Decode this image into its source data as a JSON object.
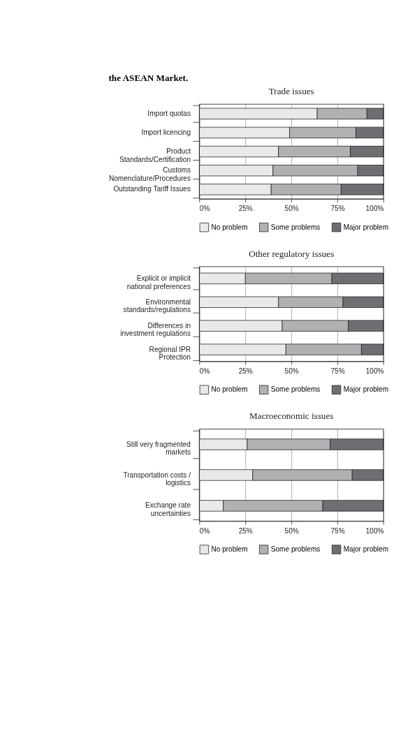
{
  "chart_data": [
    {
      "type": "bar",
      "orientation": "horizontal",
      "stacked": true,
      "title": "Trade issues",
      "annotations": [
        "the ASEAN Market."
      ],
      "categories": [
        "Import quotas",
        "Import licencing",
        "Product\nStandards/Certification",
        "Customs\nNomenclature/Procedures",
        "Outstanding Tariff Issues"
      ],
      "series": [
        {
          "name": "No problem",
          "color": "#e8e9eb",
          "values": [
            64,
            49,
            43,
            40,
            39
          ]
        },
        {
          "name": "Some problems",
          "color": "#b0b1b3",
          "values": [
            27,
            36,
            39,
            46,
            38
          ]
        },
        {
          "name": "Major problem",
          "color": "#6e6f72",
          "values": [
            9,
            15,
            18,
            14,
            23
          ]
        }
      ],
      "xlim": [
        0,
        100
      ],
      "xticks": [
        {
          "value": 0,
          "label": "0%"
        },
        {
          "value": 25,
          "label": "25%"
        },
        {
          "value": 50,
          "label": "50%"
        },
        {
          "value": 75,
          "label": "75%"
        },
        {
          "value": 100,
          "label": "100%"
        }
      ],
      "grid": "x",
      "legend": "bottom"
    },
    {
      "type": "bar",
      "orientation": "horizontal",
      "stacked": true,
      "title": "Other regulatory issues",
      "categories": [
        "Explicit or implicit\nnational preferences",
        "Environmental\nstandards/regulations",
        "Differences in\ninvestment regulations",
        "Regional IPR\nProtection"
      ],
      "series": [
        {
          "name": "No problem",
          "color": "#e8e9eb",
          "values": [
            25,
            43,
            45,
            47
          ]
        },
        {
          "name": "Some problems",
          "color": "#b0b1b3",
          "values": [
            47,
            35,
            36,
            41
          ]
        },
        {
          "name": "Major problem",
          "color": "#6e6f72",
          "values": [
            28,
            22,
            19,
            12
          ]
        }
      ],
      "xlim": [
        0,
        100
      ],
      "xticks": [
        {
          "value": 0,
          "label": "0%"
        },
        {
          "value": 25,
          "label": "25%"
        },
        {
          "value": 50,
          "label": "50%"
        },
        {
          "value": 75,
          "label": "75%"
        },
        {
          "value": 100,
          "label": "100%"
        }
      ],
      "grid": "x",
      "legend": "bottom"
    },
    {
      "type": "bar",
      "orientation": "horizontal",
      "stacked": true,
      "title": "Macroeconomic issues",
      "categories": [
        "Still very fragmented\nmarkets",
        "Transportation costs /\nlogistics",
        "Exchange rate\nuncertainties"
      ],
      "series": [
        {
          "name": "No problem",
          "color": "#e8e9eb",
          "values": [
            26,
            29,
            13
          ]
        },
        {
          "name": "Some problems",
          "color": "#b0b1b3",
          "values": [
            45,
            54,
            54
          ]
        },
        {
          "name": "Major problem",
          "color": "#6e6f72",
          "values": [
            29,
            17,
            33
          ]
        }
      ],
      "xlim": [
        0,
        100
      ],
      "xticks": [
        {
          "value": 0,
          "label": "0%"
        },
        {
          "value": 25,
          "label": "25%"
        },
        {
          "value": 50,
          "label": "50%"
        },
        {
          "value": 75,
          "label": "75%"
        },
        {
          "value": 100,
          "label": "100%"
        }
      ],
      "grid": "x",
      "legend": "bottom"
    }
  ]
}
